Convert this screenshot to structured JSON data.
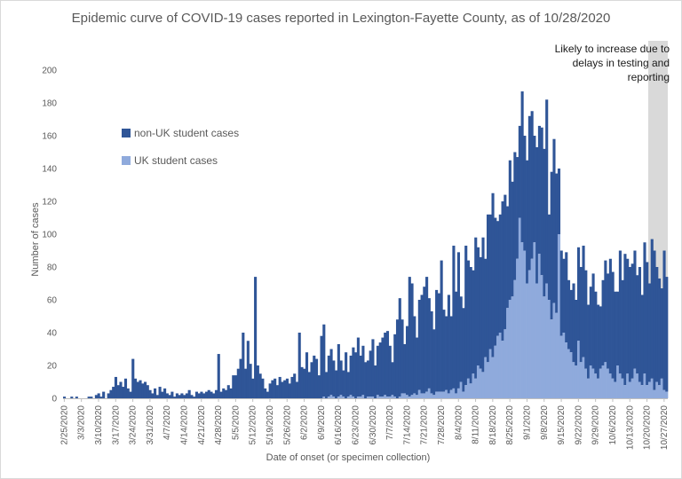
{
  "chart_data": {
    "type": "bar",
    "stacked": true,
    "title": "Epidemic curve of COVID-19 cases reported in Lexington-Fayette County, as of 10/28/2020",
    "xlabel": "Date of onset (or specimen collection)",
    "ylabel": "Number of cases",
    "ylim": [
      0,
      200
    ],
    "yticks": [
      0,
      20,
      40,
      60,
      80,
      100,
      120,
      140,
      160,
      180,
      200
    ],
    "grid": false,
    "legend_position": "upper-left",
    "x_start": "2/25/2020",
    "x_end": "10/28/2020",
    "xtick_labels": [
      "2/25/2020",
      "3/3/2020",
      "3/10/2020",
      "3/17/2020",
      "3/24/2020",
      "3/31/2020",
      "4/7/2020",
      "4/14/2020",
      "4/21/2020",
      "4/28/2020",
      "5/5/2020",
      "5/12/2020",
      "5/19/2020",
      "5/26/2020",
      "6/2/2020",
      "6/9/2020",
      "6/16/2020",
      "6/23/2020",
      "6/30/2020",
      "7/7/2020",
      "7/14/2020",
      "7/21/2020",
      "7/28/2020",
      "8/4/2020",
      "8/11/2020",
      "8/18/2020",
      "8/25/2020",
      "9/1/2020",
      "9/8/2020",
      "9/15/2020",
      "9/22/2020",
      "9/29/2020",
      "10/6/2020",
      "10/13/2020",
      "10/20/2020",
      "10/27/2020"
    ],
    "shaded_region": {
      "start": "10/21/2020",
      "end": "10/28/2020",
      "label": "Likely to increase due to delays in testing and reporting"
    },
    "series": [
      {
        "name": "non-UK student cases",
        "color": "#2f5597"
      },
      {
        "name": "UK student cases",
        "color": "#8faadc"
      }
    ],
    "weekly_non_uk": [
      [
        1,
        0,
        0,
        1,
        0,
        1,
        0
      ],
      [
        0,
        0,
        0,
        1,
        1,
        0,
        2
      ],
      [
        3,
        1,
        4,
        0,
        3,
        5,
        7
      ],
      [
        13,
        8,
        10,
        7,
        12,
        6,
        4
      ],
      [
        24,
        12,
        10,
        11,
        9,
        10,
        8
      ],
      [
        5,
        3,
        6,
        2,
        7,
        4,
        6
      ],
      [
        3,
        2,
        4,
        1,
        3,
        2,
        3
      ],
      [
        2,
        3,
        5,
        2,
        1,
        4,
        3
      ],
      [
        4,
        3,
        4,
        5,
        4,
        3,
        5
      ],
      [
        27,
        4,
        6,
        5,
        8,
        6,
        14
      ],
      [
        14,
        18,
        24,
        40,
        18,
        35,
        21
      ],
      [
        12,
        74,
        20,
        15,
        12,
        6,
        4
      ],
      [
        9,
        11,
        12,
        8,
        13,
        10,
        11
      ],
      [
        12,
        9,
        13,
        15,
        10,
        40,
        19
      ],
      [
        18,
        28,
        16,
        22,
        26,
        24,
        14
      ],
      [
        38,
        44,
        16,
        25,
        28,
        22,
        17
      ],
      [
        32,
        21,
        16,
        28,
        15,
        24,
        30
      ],
      [
        28,
        36,
        25,
        30,
        22,
        22,
        28
      ],
      [
        35,
        20,
        30,
        33,
        36,
        38,
        40
      ],
      [
        31,
        20,
        38,
        48,
        60,
        45,
        30
      ],
      [
        42,
        73,
        68,
        47,
        35,
        55,
        60
      ],
      [
        65,
        70,
        55,
        50,
        40,
        62,
        60
      ],
      [
        80,
        50,
        45,
        60,
        45,
        87,
        62
      ],
      [
        83,
        52,
        51,
        85,
        72,
        71,
        63
      ],
      [
        86,
        72,
        68,
        82,
        60,
        90,
        82
      ],
      [
        100,
        78,
        70,
        72,
        85,
        82,
        62
      ],
      [
        85,
        70,
        78,
        62,
        56,
        92,
        70
      ],
      [
        75,
        94,
        90,
        65,
        83,
        78,
        90
      ],
      [
        90,
        112,
        52,
        90,
        100,
        85,
        40
      ],
      [
        52,
        45,
        55,
        42,
        38,
        48,
        40
      ],
      [
        57,
        58,
        68,
        60,
        45,
        48,
        58
      ],
      [
        50,
        45,
        38,
        52,
        62,
        58,
        70
      ],
      [
        65,
        55,
        45,
        75,
        60,
        80,
        70
      ],
      [
        70,
        70,
        72,
        60,
        70,
        55,
        80
      ],
      [
        75,
        60,
        85,
        85,
        70,
        65,
        55
      ],
      [
        85,
        70,
        70,
        62,
        55,
        40,
        30
      ]
    ],
    "weekly_uk": [
      [
        0,
        0,
        0,
        0,
        0,
        0,
        0
      ],
      [
        0,
        0,
        0,
        0,
        0,
        0,
        0
      ],
      [
        0,
        0,
        0,
        0,
        0,
        0,
        0
      ],
      [
        0,
        0,
        0,
        0,
        0,
        0,
        0
      ],
      [
        0,
        0,
        0,
        0,
        0,
        0,
        0
      ],
      [
        0,
        0,
        0,
        0,
        0,
        0,
        0
      ],
      [
        0,
        0,
        0,
        0,
        0,
        0,
        0
      ],
      [
        0,
        0,
        0,
        0,
        0,
        0,
        0
      ],
      [
        0,
        0,
        0,
        0,
        0,
        0,
        0
      ],
      [
        0,
        0,
        0,
        0,
        0,
        0,
        0
      ],
      [
        0,
        0,
        0,
        0,
        0,
        0,
        0
      ],
      [
        0,
        0,
        0,
        0,
        0,
        0,
        0
      ],
      [
        0,
        0,
        0,
        0,
        0,
        0,
        0
      ],
      [
        0,
        0,
        0,
        0,
        0,
        0,
        0
      ],
      [
        0,
        0,
        0,
        0,
        0,
        0,
        0
      ],
      [
        0,
        1,
        0,
        1,
        2,
        1,
        0
      ],
      [
        1,
        2,
        1,
        0,
        1,
        2,
        1
      ],
      [
        0,
        1,
        1,
        2,
        0,
        1,
        1
      ],
      [
        1,
        0,
        2,
        1,
        1,
        2,
        1
      ],
      [
        1,
        2,
        1,
        0,
        1,
        3,
        3
      ],
      [
        2,
        1,
        2,
        3,
        2,
        5,
        3
      ],
      [
        3,
        4,
        6,
        3,
        2,
        4,
        4
      ],
      [
        4,
        4,
        5,
        3,
        5,
        6,
        3
      ],
      [
        6,
        10,
        4,
        8,
        12,
        9,
        15
      ],
      [
        12,
        20,
        18,
        16,
        25,
        22,
        30
      ],
      [
        25,
        32,
        38,
        40,
        35,
        42,
        55
      ],
      [
        60,
        62,
        72,
        85,
        110,
        95,
        90
      ],
      [
        70,
        78,
        85,
        95,
        70,
        88,
        75
      ],
      [
        62,
        70,
        60,
        48,
        58,
        52,
        100
      ],
      [
        38,
        40,
        34,
        30,
        28,
        22,
        20
      ],
      [
        35,
        22,
        25,
        18,
        12,
        20,
        18
      ],
      [
        15,
        12,
        18,
        20,
        22,
        18,
        15
      ],
      [
        12,
        10,
        20,
        15,
        12,
        8,
        15
      ],
      [
        10,
        12,
        18,
        15,
        10,
        8,
        15
      ],
      [
        8,
        10,
        12,
        5,
        10,
        8,
        12
      ],
      [
        5,
        4,
        3,
        2,
        2,
        1,
        0
      ]
    ]
  }
}
